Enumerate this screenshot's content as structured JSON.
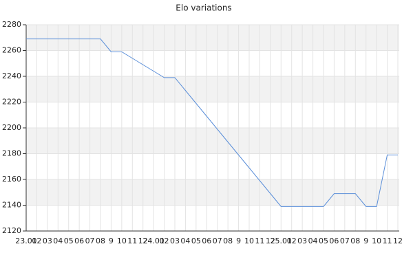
{
  "chart_data": {
    "type": "line",
    "title": "Elo variations",
    "categories": [
      "23.01",
      "02",
      "03",
      "04",
      "05",
      "06",
      "07",
      "08",
      "9",
      "10",
      "11",
      "12",
      "24.01",
      "02",
      "03",
      "04",
      "05",
      "06",
      "07",
      "08",
      "9",
      "10",
      "11",
      "12",
      "25.01",
      "02",
      "03",
      "04",
      "05",
      "06",
      "07",
      "08",
      "9",
      "10",
      "11",
      "12"
    ],
    "series": [
      {
        "name": "Elo",
        "color": "#5b8fd9",
        "values": [
          2269,
          2269,
          2269,
          2269,
          2269,
          2269,
          2269,
          2269,
          2259,
          2259,
          2254,
          2249,
          2244,
          2239,
          2239,
          2229,
          2219,
          2209,
          2199,
          2189,
          2179,
          2169,
          2159,
          2149,
          2139,
          2139,
          2139,
          2139,
          2139,
          2149,
          2149,
          2149,
          2139,
          2139,
          2179,
          2179
        ]
      }
    ],
    "ylim": [
      2120,
      2280
    ],
    "yticks": [
      2120,
      2140,
      2160,
      2180,
      2200,
      2220,
      2240,
      2260,
      2280
    ],
    "grid": true
  }
}
